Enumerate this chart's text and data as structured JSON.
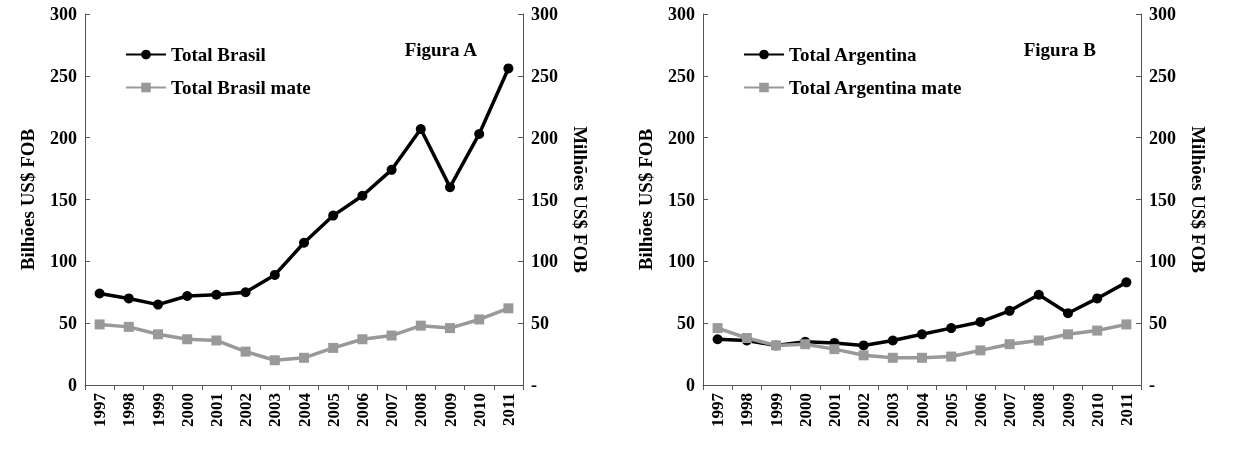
{
  "chart_data": [
    {
      "type": "line",
      "categories": [
        "1997",
        "1998",
        "1999",
        "2000",
        "2001",
        "2002",
        "2003",
        "2004",
        "2005",
        "2006",
        "2007",
        "2008",
        "2009",
        "2010",
        "2011"
      ],
      "ylabel": "Bilhões US$ FOB",
      "y2label": "Milhões US$ FOB",
      "ylim": [
        0,
        300
      ],
      "yticks": [
        0,
        50,
        100,
        150,
        200,
        250,
        300
      ],
      "y2lim": [
        0,
        300
      ],
      "y2ticks": [
        {
          "value": 0,
          "label": "-"
        },
        50,
        100,
        150,
        200,
        250,
        300
      ],
      "annotations": [
        "Figura A"
      ],
      "legend": "top left",
      "grid": false,
      "series": [
        {
          "name": "Total Brasil",
          "color": "#000000",
          "marker": "circle",
          "values": [
            74,
            70,
            65,
            72,
            73,
            75,
            89,
            115,
            137,
            153,
            174,
            207,
            160,
            203,
            256
          ]
        },
        {
          "name": "Total Brasil mate",
          "color": "#999999",
          "marker": "square",
          "axis": "y2",
          "values": [
            49,
            47,
            41,
            37,
            36,
            27,
            20,
            22,
            30,
            37,
            40,
            48,
            46,
            53,
            62
          ]
        }
      ]
    },
    {
      "type": "line",
      "categories": [
        "1997",
        "1998",
        "1999",
        "2000",
        "2001",
        "2002",
        "2003",
        "2004",
        "2005",
        "2006",
        "2007",
        "2008",
        "2009",
        "2010",
        "2011"
      ],
      "ylabel": "Bilhões US$ FOB",
      "y2label": "Milhões US$ FOB",
      "ylim": [
        0,
        300
      ],
      "yticks": [
        0,
        50,
        100,
        150,
        200,
        250,
        300
      ],
      "y2lim": [
        0,
        300
      ],
      "y2ticks": [
        {
          "value": 0,
          "label": "-"
        },
        50,
        100,
        150,
        200,
        250,
        300
      ],
      "annotations": [
        "Figura B"
      ],
      "legend": "top left",
      "grid": false,
      "series": [
        {
          "name": "Total Argentina",
          "color": "#000000",
          "marker": "circle",
          "values": [
            37,
            36,
            32,
            35,
            34,
            32,
            36,
            41,
            46,
            51,
            60,
            73,
            58,
            70,
            83
          ]
        },
        {
          "name": "Total Argentina mate",
          "color": "#999999",
          "marker": "square",
          "axis": "y2",
          "values": [
            46,
            38,
            32,
            33,
            29,
            24,
            22,
            22,
            23,
            28,
            33,
            36,
            41,
            44,
            49
          ]
        }
      ]
    }
  ]
}
